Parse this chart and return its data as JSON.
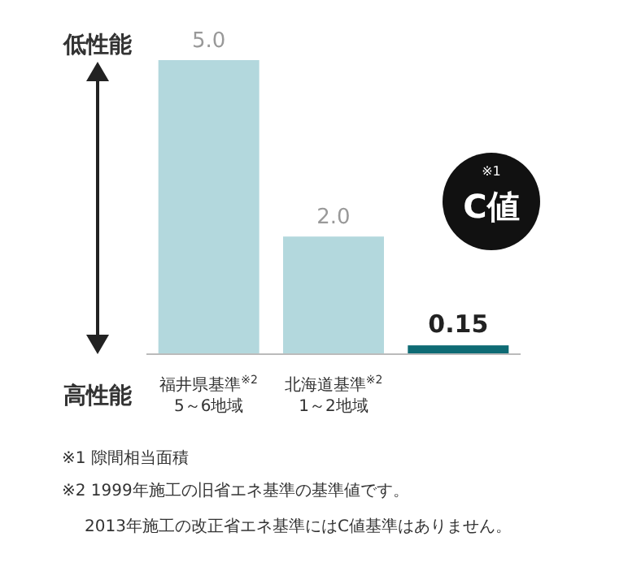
{
  "chart_data": {
    "type": "bar",
    "categories": [
      "福井県基準$^{※2}$\n5～6地域",
      "北海道基準$^{※2}$\n1～2地域",
      null
    ],
    "values": [
      5.0,
      2.0,
      0.15
    ],
    "value_labels": [
      "5.0",
      "2.0",
      "0.15"
    ],
    "colors": [
      "#b3d8dd",
      "#b3d8dd",
      "#0e6b74"
    ],
    "annotations": [
      "低性能",
      "高性能",
      "※1\nC値",
      "※1 隙間相当面積",
      "※2 1999年施工の旧省エネ基準の基準値です。",
      "2013年施工の改正省エネ基準にはC値基準はありません。"
    ]
  }
}
